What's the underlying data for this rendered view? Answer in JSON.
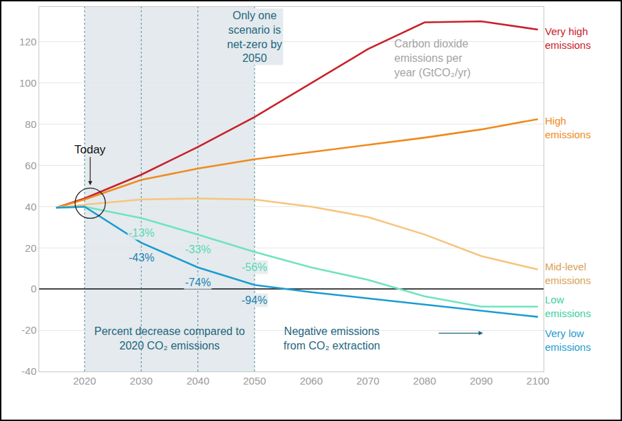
{
  "chart_data": {
    "type": "line",
    "ylabel": "Carbon dioxide\nemissions per\nyear (GtCO₂/yr)",
    "x": [
      2015,
      2020,
      2030,
      2040,
      2050,
      2060,
      2070,
      2080,
      2090,
      2100
    ],
    "series": [
      {
        "name": "Very high emissions",
        "color": "#c8202a",
        "values": [
          39.5,
          44,
          55.5,
          69,
          83.5,
          100,
          116.5,
          129.5,
          130,
          126
        ]
      },
      {
        "name": "High emissions",
        "color": "#f08a1c",
        "values": [
          39.5,
          43.5,
          53,
          58.5,
          63,
          66.5,
          70,
          73.5,
          77.5,
          82.5
        ]
      },
      {
        "name": "Mid-level emissions",
        "color": "#f6c57e",
        "values": [
          39.5,
          41,
          43.5,
          44,
          43.5,
          40,
          35,
          26.5,
          16,
          9.5
        ]
      },
      {
        "name": "Low emissions",
        "color": "#6fe3bf",
        "values": [
          39.5,
          40,
          34.5,
          26.5,
          18,
          10.5,
          4.5,
          -3.5,
          -8.5,
          -8.5
        ]
      },
      {
        "name": "Very low emissions",
        "color": "#1c9bd1",
        "values": [
          39.5,
          40,
          22.5,
          10.5,
          2,
          -1.5,
          -4.5,
          -7.5,
          -10.5,
          -13.5
        ]
      }
    ],
    "annotations": [
      {
        "text": "-13%",
        "x": 2030,
        "series": "Low emissions"
      },
      {
        "text": "-33%",
        "x": 2040,
        "series": "Low emissions"
      },
      {
        "text": "-56%",
        "x": 2050,
        "series": "Low emissions"
      },
      {
        "text": "-43%",
        "x": 2030,
        "series": "Very low emissions"
      },
      {
        "text": "-74%",
        "x": 2040,
        "series": "Very low emissions"
      },
      {
        "text": "-94%",
        "x": 2050,
        "series": "Very low emissions"
      }
    ],
    "highlight": {
      "xlim": [
        2020,
        2050
      ],
      "text": "Only one\nscenario is\nnet-zero by\n2050",
      "note": "Percent decrease compared to\n2020 CO₂ emissions"
    },
    "today": {
      "text": "Today",
      "x": 2021
    },
    "negative_note": "Negative emissions\nfrom CO₂ extraction",
    "xlim": [
      2012,
      2101
    ],
    "xticks": [
      2020,
      2030,
      2040,
      2050,
      2060,
      2070,
      2080,
      2090,
      2100
    ],
    "ylim": [
      -40,
      137
    ],
    "yticks": [
      -40,
      -20,
      0,
      20,
      40,
      60,
      80,
      100,
      120
    ],
    "grid": true,
    "legend": "none"
  }
}
